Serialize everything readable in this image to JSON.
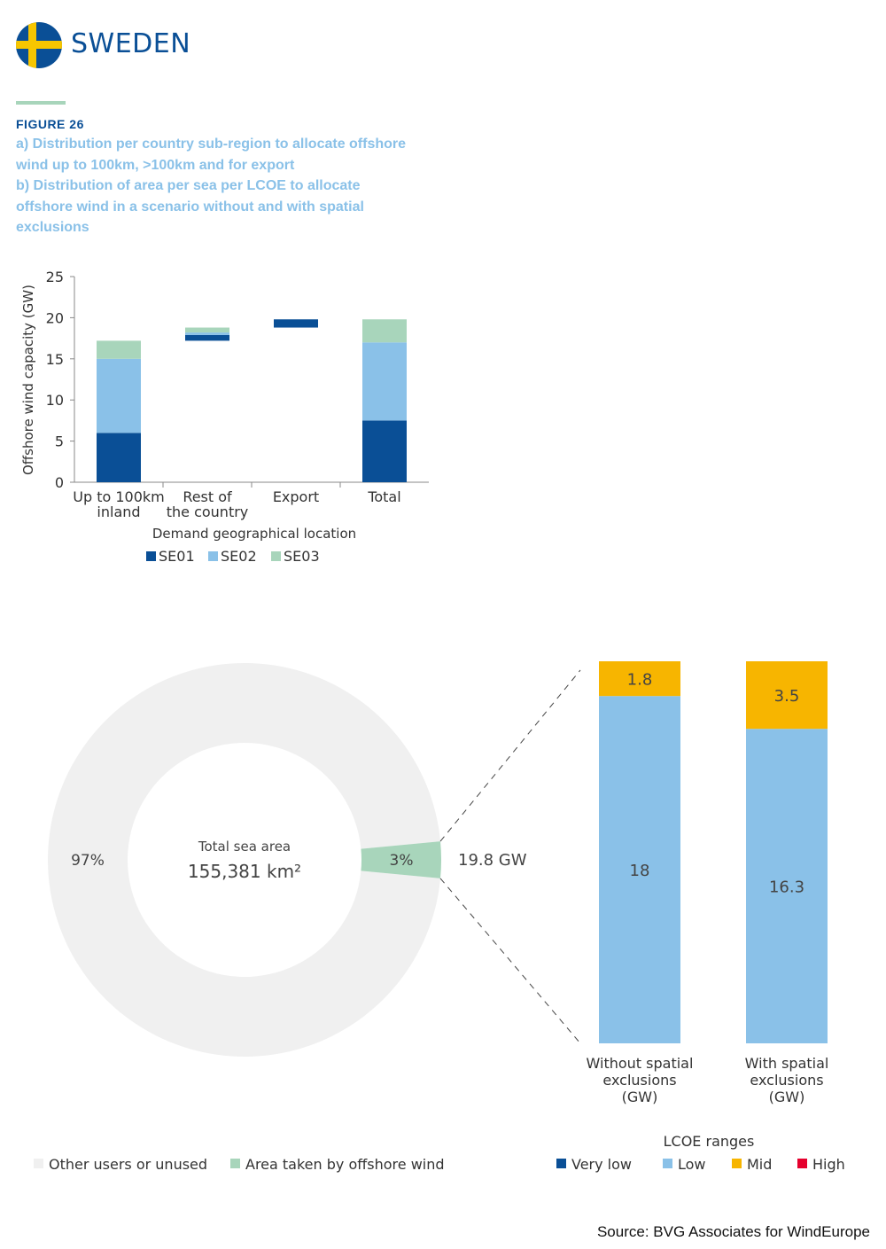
{
  "header": {
    "country": "SWEDEN",
    "figure_label": "FIGURE 26",
    "caption_lines": [
      "a) Distribution per country sub-region to allocate offshore",
      "wind up to 100km, >100km and for export",
      "b) Distribution of area per sea per LCOE to allocate",
      "offshore wind in a scenario without and with spatial",
      "exclusions"
    ]
  },
  "colors": {
    "se01": "#0a4f96",
    "se02": "#8ac1e8",
    "se03": "#a8d5bb",
    "very_low": "#0a4f96",
    "low": "#8ac1e8",
    "mid": "#f7b500",
    "high": "#e5002d",
    "other": "#f0f0f0",
    "area": "#a8d5bb",
    "flag_blue": "#0a4f96",
    "flag_yellow": "#f7c600"
  },
  "chart_data": [
    {
      "type": "bar",
      "stacked": "floating",
      "title": "",
      "xlabel": "Demand geographical location",
      "ylabel": "Offshore wind capacity (GW)",
      "ylim": [
        0,
        25
      ],
      "yticks": [
        "0",
        "5",
        "10",
        "15",
        "20",
        "25"
      ],
      "categories": [
        [
          "Up to 100km",
          "inland"
        ],
        [
          "Rest of",
          "the country"
        ],
        [
          "Export"
        ],
        [
          "Total"
        ]
      ],
      "series": [
        {
          "name": "SE01",
          "values": [
            6.0,
            0.7,
            1.0,
            7.5
          ]
        },
        {
          "name": "SE02",
          "values": [
            9.0,
            0.3,
            0,
            9.5
          ]
        },
        {
          "name": "SE03",
          "values": [
            2.2,
            0.6,
            0,
            2.8
          ]
        }
      ],
      "bases": [
        0,
        17.2,
        18.8,
        0
      ],
      "legend": "bottom"
    },
    {
      "type": "pie",
      "style": "donut",
      "center_label": "Total sea area",
      "center_value": "155,381 km²",
      "slices": [
        {
          "name": "Other users or unused",
          "value": 97,
          "label": "97%"
        },
        {
          "name": "Area taken by offshore wind",
          "value": 3,
          "label": "3%"
        }
      ],
      "callout": "19.8 GW",
      "legend": "bottom-left"
    },
    {
      "type": "bar",
      "stacked": true,
      "title": "LCOE ranges",
      "categories": [
        [
          "Without spatial",
          "exclusions",
          "(GW)"
        ],
        [
          "With spatial",
          "exclusions",
          "(GW)"
        ]
      ],
      "series": [
        {
          "name": "Very low",
          "values": [
            0,
            0
          ]
        },
        {
          "name": "Low",
          "values": [
            18,
            16.3
          ],
          "labels": [
            "18",
            "16.3"
          ]
        },
        {
          "name": "Mid",
          "values": [
            1.8,
            3.5
          ],
          "labels": [
            "1.8",
            "3.5"
          ]
        },
        {
          "name": "High",
          "values": [
            0,
            0
          ]
        }
      ],
      "legend": "bottom-right"
    }
  ],
  "footer": {
    "source": "Source: BVG Associates for WindEurope"
  }
}
